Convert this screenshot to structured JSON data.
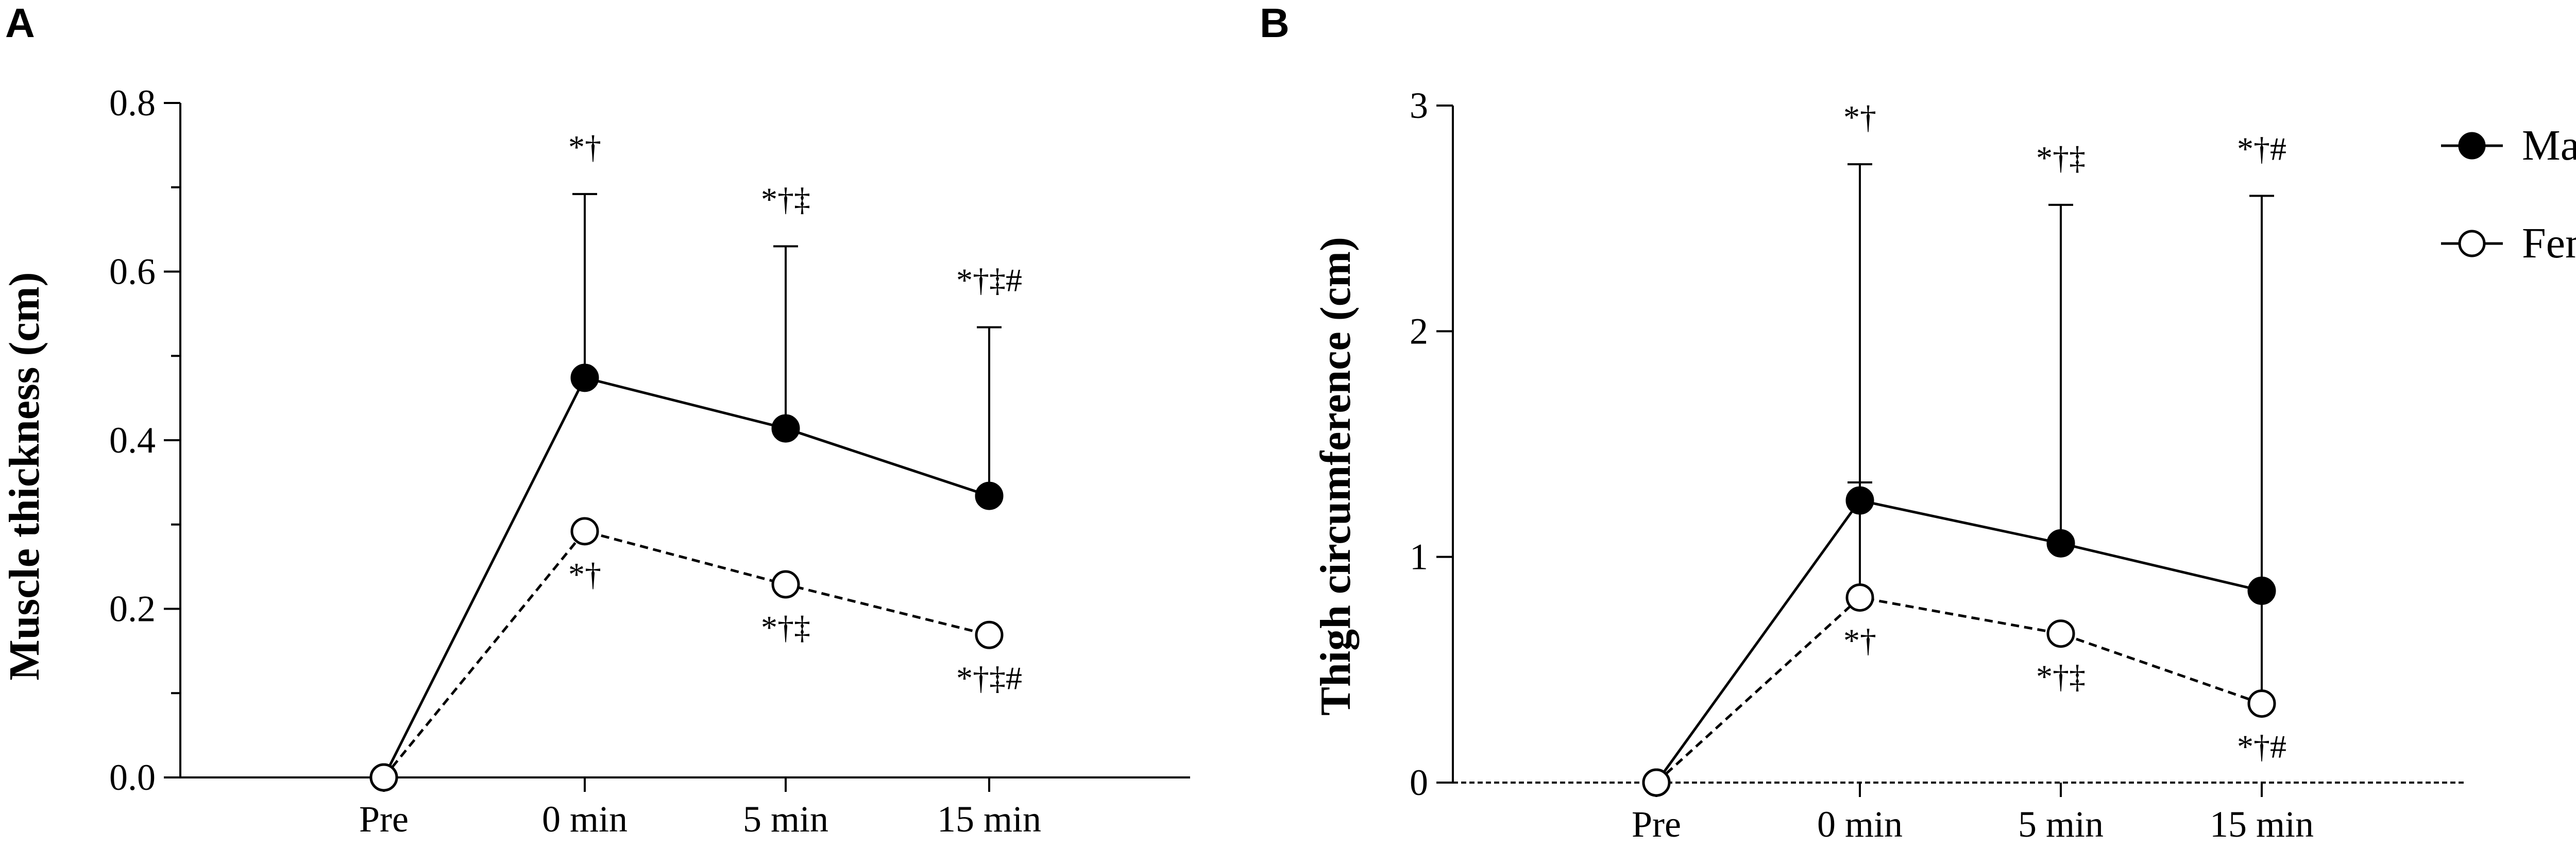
{
  "chart_data": [
    {
      "panel": "A",
      "type": "line",
      "categories": [
        "Pre",
        "0 min",
        "5 min",
        "15 min"
      ],
      "ylabel": "Muscle thickness (cm)",
      "ylim": [
        0,
        0.8
      ],
      "yticks": [
        "0.0",
        "0.2",
        "0.4",
        "0.6",
        "0.8"
      ],
      "series": [
        {
          "name": "Males",
          "values": [
            0.0,
            0.474,
            0.414,
            0.334
          ],
          "error_upper": [
            0.0,
            0.692,
            0.63,
            0.534
          ],
          "error_lower": [
            0.0,
            0.474,
            0.414,
            0.334
          ],
          "annotations": [
            "",
            "*†",
            "*†‡",
            "*†‡#"
          ],
          "marker": "filled",
          "line": "solid"
        },
        {
          "name": "Females",
          "values": [
            0.0,
            0.292,
            0.229,
            0.169
          ],
          "error_upper": [
            0.0,
            0.292,
            0.229,
            0.169
          ],
          "error_lower": [
            0.0,
            0.292,
            0.229,
            0.169
          ],
          "annotations": [
            "",
            "*†",
            "*†‡",
            "*†‡#"
          ],
          "marker": "open",
          "line": "dashed"
        }
      ]
    },
    {
      "panel": "B",
      "type": "line",
      "categories": [
        "Pre",
        "0 min",
        "5 min",
        "15 min"
      ],
      "ylabel": "Thigh circumference (cm)",
      "ylim": [
        0,
        3
      ],
      "yticks": [
        "0",
        "1",
        "2",
        "3"
      ],
      "legend_placement": "top-right",
      "series": [
        {
          "name": "Males",
          "values": [
            0.0,
            1.25,
            1.06,
            0.85
          ],
          "error_upper": [
            0.0,
            2.74,
            2.56,
            2.6
          ],
          "error_lower": [
            0.0,
            1.25,
            1.06,
            0.85
          ],
          "annotations": [
            "",
            "*†",
            "*†‡",
            "*†#"
          ],
          "marker": "filled",
          "line": "solid"
        },
        {
          "name": "Females",
          "values": [
            0.0,
            0.82,
            0.66,
            0.35
          ],
          "error_upper": [
            0.0,
            1.33,
            0.66,
            0.85
          ],
          "error_lower": [
            0.0,
            0.82,
            0.66,
            0.35
          ],
          "annotations": [
            "",
            "*†",
            "*†‡",
            "*†#"
          ],
          "marker": "open",
          "line": "dashed"
        }
      ]
    }
  ]
}
